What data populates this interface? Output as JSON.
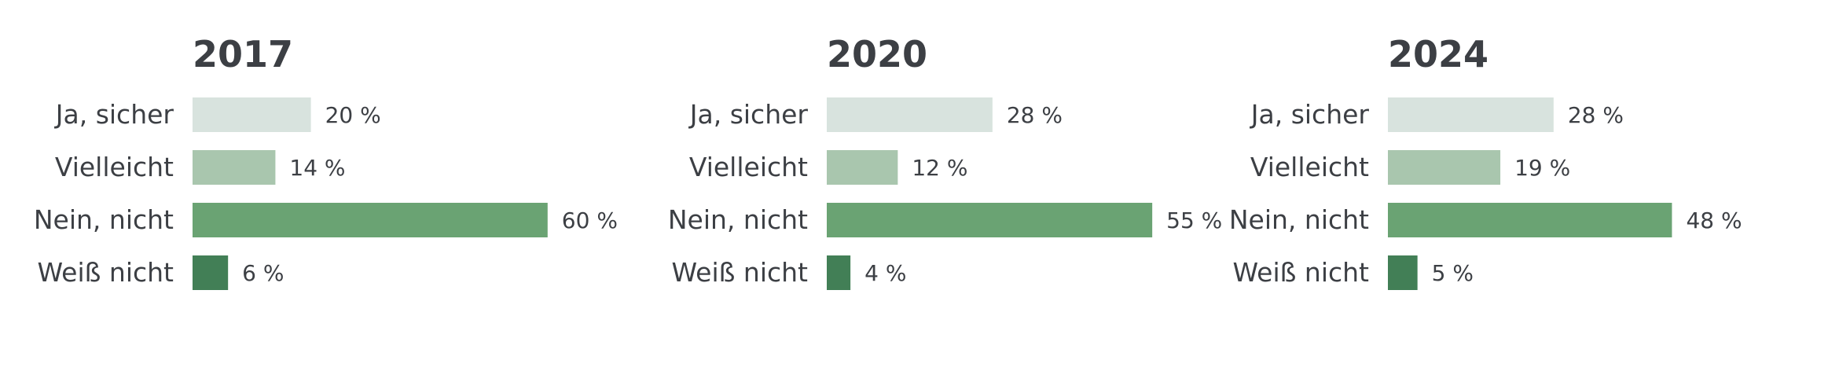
{
  "chart_data": [
    {
      "type": "bar",
      "orientation": "horizontal",
      "title": "2017",
      "categories": [
        "Ja, sicher",
        "Vielleicht",
        "Nein, nicht",
        "Weiß nicht"
      ],
      "values": [
        20,
        14,
        60,
        6
      ],
      "value_labels": [
        "20 %",
        "14 %",
        "60 %",
        "6 %"
      ],
      "unit": "%",
      "xlim": [
        0,
        60
      ],
      "grid": false,
      "legend": "none"
    },
    {
      "type": "bar",
      "orientation": "horizontal",
      "title": "2020",
      "categories": [
        "Ja, sicher",
        "Vielleicht",
        "Nein, nicht",
        "Weiß nicht"
      ],
      "values": [
        28,
        12,
        55,
        4
      ],
      "value_labels": [
        "28 %",
        "12 %",
        "55 %",
        "4 %"
      ],
      "unit": "%",
      "xlim": [
        0,
        60
      ],
      "grid": false,
      "legend": "none"
    },
    {
      "type": "bar",
      "orientation": "horizontal",
      "title": "2024",
      "categories": [
        "Ja, sicher",
        "Vielleicht",
        "Nein, nicht",
        "Weiß nicht"
      ],
      "values": [
        28,
        19,
        48,
        5
      ],
      "value_labels": [
        "28 %",
        "19 %",
        "48 %",
        "5 %"
      ],
      "unit": "%",
      "xlim": [
        0,
        60
      ],
      "grid": false,
      "legend": "none"
    }
  ],
  "colors": {
    "categories": [
      "#d8e3de",
      "#a9c6ae",
      "#6aa373",
      "#427f56"
    ],
    "text": "#3c3f44",
    "background": "#ffffff"
  }
}
